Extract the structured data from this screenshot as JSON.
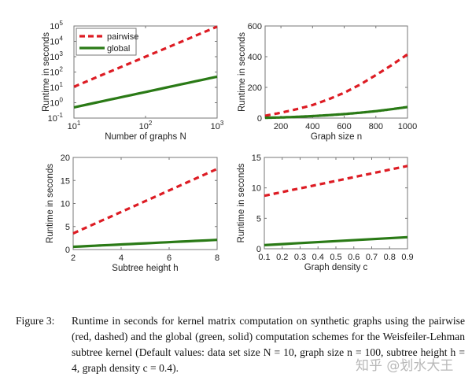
{
  "chart_data": [
    {
      "type": "line",
      "xlabel": "Number of graphs N",
      "ylabel": "Runtime in seconds",
      "xscale": "log",
      "yscale": "log",
      "xlim": [
        10,
        1000
      ],
      "ylim": [
        0.1,
        100000
      ],
      "xticks": [
        10,
        100,
        1000
      ],
      "xtick_labels": [
        [
          "10",
          "1"
        ],
        [
          "10",
          "2"
        ],
        [
          "10",
          "3"
        ]
      ],
      "yticks": [
        0.1,
        1,
        10,
        100,
        1000,
        10000,
        100000
      ],
      "ytick_labels": [
        [
          "10",
          "-1"
        ],
        [
          "10",
          "0"
        ],
        [
          "10",
          "1"
        ],
        [
          "10",
          "2"
        ],
        [
          "10",
          "3"
        ],
        [
          "10",
          "4"
        ],
        [
          "10",
          "5"
        ]
      ],
      "legend": {
        "placement": "top-left",
        "entries": [
          "pairwise",
          "global"
        ]
      },
      "grid": false,
      "series": [
        {
          "name": "pairwise",
          "style": "dashed",
          "color": "#dd1c24",
          "x": [
            10,
            1000
          ],
          "y": [
            11,
            90000
          ]
        },
        {
          "name": "global",
          "style": "solid",
          "color": "#2a7a16",
          "x": [
            10,
            1000
          ],
          "y": [
            0.5,
            50
          ]
        }
      ]
    },
    {
      "type": "line",
      "xlabel": "Graph size n",
      "ylabel": "Runtime in seconds",
      "xlim": [
        100,
        1000
      ],
      "ylim": [
        0,
        600
      ],
      "xticks": [
        200,
        400,
        600,
        800,
        1000
      ],
      "yticks": [
        0,
        200,
        400,
        600
      ],
      "grid": false,
      "series": [
        {
          "name": "pairwise",
          "style": "dashed",
          "color": "#dd1c24",
          "x": [
            100,
            200,
            300,
            400,
            500,
            600,
            700,
            800,
            900,
            1000
          ],
          "y": [
            15,
            35,
            58,
            85,
            122,
            165,
            218,
            280,
            345,
            415
          ]
        },
        {
          "name": "global",
          "style": "solid",
          "color": "#2a7a16",
          "x": [
            100,
            200,
            300,
            400,
            500,
            600,
            700,
            800,
            900,
            1000
          ],
          "y": [
            2,
            4,
            8,
            13,
            19,
            26,
            35,
            45,
            58,
            72
          ]
        }
      ]
    },
    {
      "type": "line",
      "xlabel": "Subtree height h",
      "ylabel": "Runtime in seconds",
      "xlim": [
        2,
        8
      ],
      "ylim": [
        0,
        20
      ],
      "xticks": [
        2,
        4,
        6,
        8
      ],
      "yticks": [
        0,
        5,
        10,
        15,
        20
      ],
      "grid": false,
      "series": [
        {
          "name": "pairwise",
          "style": "dashed",
          "color": "#dd1c24",
          "x": [
            2,
            8
          ],
          "y": [
            3.5,
            17.5
          ]
        },
        {
          "name": "global",
          "style": "solid",
          "color": "#2a7a16",
          "x": [
            2,
            8
          ],
          "y": [
            0.6,
            2.1
          ]
        }
      ]
    },
    {
      "type": "line",
      "xlabel": "Graph density c",
      "ylabel": "Runtime in seconds",
      "xlim": [
        0.1,
        0.9
      ],
      "ylim": [
        0,
        15
      ],
      "xticks": [
        0.1,
        0.2,
        0.3,
        0.4,
        0.5,
        0.6,
        0.7,
        0.8,
        0.9
      ],
      "yticks": [
        0,
        5,
        10,
        15
      ],
      "grid": false,
      "series": [
        {
          "name": "pairwise",
          "style": "dashed",
          "color": "#dd1c24",
          "x": [
            0.1,
            0.9
          ],
          "y": [
            8.7,
            13.6
          ]
        },
        {
          "name": "global",
          "style": "solid",
          "color": "#2a7a16",
          "x": [
            0.1,
            0.9
          ],
          "y": [
            0.6,
            1.9
          ]
        }
      ]
    }
  ],
  "caption": {
    "label": "Figure 3:",
    "text": "Runtime in seconds for kernel matrix computation on synthetic graphs using the pairwise (red, dashed) and the global (green, solid) computation schemes for the Weisfeiler-Lehman subtree kernel (Default values: data set size N = 10, graph size n = 100, subtree height h = 4, graph density c = 0.4)."
  },
  "watermark": "知乎 @划水大王"
}
